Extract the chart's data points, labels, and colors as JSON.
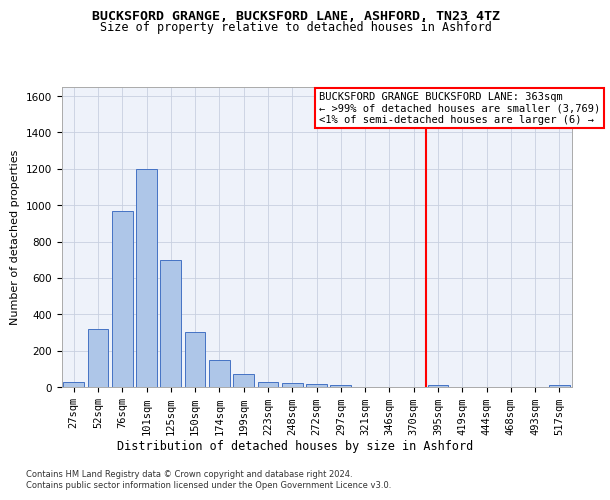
{
  "title": "BUCKSFORD GRANGE, BUCKSFORD LANE, ASHFORD, TN23 4TZ",
  "subtitle": "Size of property relative to detached houses in Ashford",
  "xlabel": "Distribution of detached houses by size in Ashford",
  "ylabel": "Number of detached properties",
  "footer_line1": "Contains HM Land Registry data © Crown copyright and database right 2024.",
  "footer_line2": "Contains public sector information licensed under the Open Government Licence v3.0.",
  "bin_labels": [
    "27sqm",
    "52sqm",
    "76sqm",
    "101sqm",
    "125sqm",
    "150sqm",
    "174sqm",
    "199sqm",
    "223sqm",
    "248sqm",
    "272sqm",
    "297sqm",
    "321sqm",
    "346sqm",
    "370sqm",
    "395sqm",
    "419sqm",
    "444sqm",
    "468sqm",
    "493sqm",
    "517sqm"
  ],
  "bar_values": [
    30,
    320,
    970,
    1200,
    700,
    300,
    150,
    70,
    25,
    20,
    15,
    10,
    0,
    0,
    0,
    10,
    0,
    0,
    0,
    0,
    10
  ],
  "bar_color": "#aec6e8",
  "bar_edge_color": "#4472c4",
  "vline_x": 14.5,
  "vline_color": "red",
  "annotation_line1": "BUCKSFORD GRANGE BUCKSFORD LANE: 363sqm",
  "annotation_line2": "← >99% of detached houses are smaller (3,769)",
  "annotation_line3": "<1% of semi-detached houses are larger (6) →",
  "annotation_fontsize": 7.5,
  "ylim": [
    0,
    1650
  ],
  "yticks": [
    0,
    200,
    400,
    600,
    800,
    1000,
    1200,
    1400,
    1600
  ],
  "grid_color": "#c8d0e0",
  "background_color": "#eef2fa",
  "title_fontsize": 9.5,
  "subtitle_fontsize": 8.5,
  "xlabel_fontsize": 8.5,
  "ylabel_fontsize": 8.0,
  "tick_fontsize": 7.5,
  "footer_fontsize": 6.0
}
